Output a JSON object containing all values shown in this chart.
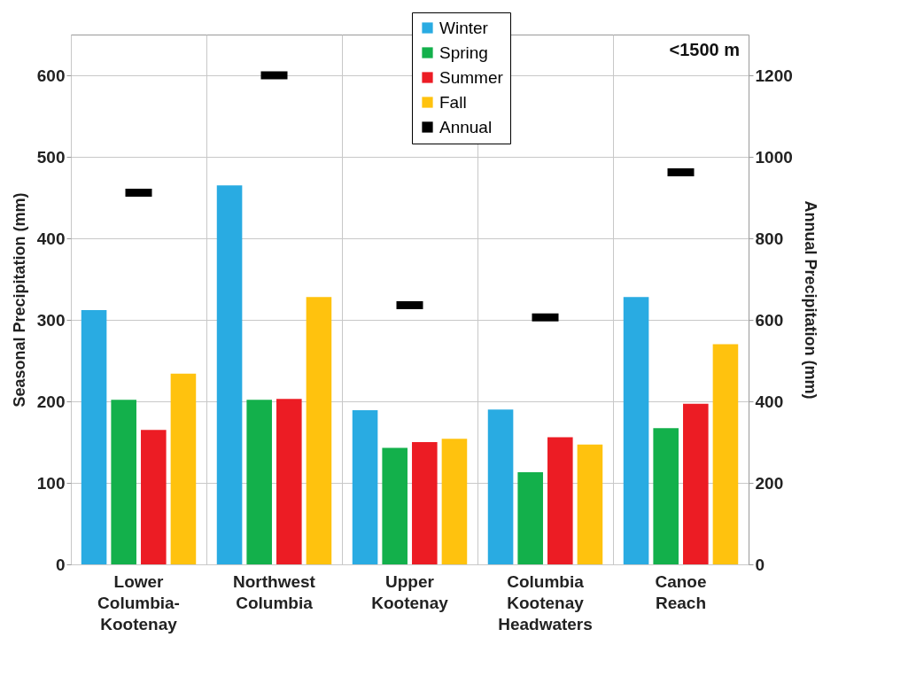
{
  "chart_data": {
    "type": "bar",
    "categories": [
      "Lower Columbia-Kootenay",
      "Northwest Columbia",
      "Upper Kootenay",
      "Columbia Kootenay Headwaters",
      "Canoe Reach"
    ],
    "series": [
      {
        "name": "Winter",
        "color": "#29abe2",
        "values": [
          312,
          465,
          189,
          190,
          328
        ]
      },
      {
        "name": "Spring",
        "color": "#13b04b",
        "values": [
          202,
          202,
          143,
          113,
          167
        ]
      },
      {
        "name": "Summer",
        "color": "#ec1c24",
        "values": [
          165,
          203,
          150,
          156,
          197
        ]
      },
      {
        "name": "Fall",
        "color": "#ffc20e",
        "values": [
          234,
          328,
          154,
          147,
          270
        ]
      },
      {
        "name": "Annual",
        "type": "scatter",
        "axis": "y2",
        "color": "#000000",
        "values": [
          912,
          1200,
          636,
          606,
          962
        ]
      }
    ],
    "ylabel": "Seasonal  Precipitation (mm)",
    "y2label": "Annual  Precipitation (mm)",
    "ylim": [
      0,
      650
    ],
    "yticks": [
      0,
      100,
      200,
      300,
      400,
      500,
      600
    ],
    "y2lim": [
      0,
      1300
    ],
    "y2ticks": [
      0,
      200,
      400,
      600,
      800,
      1000,
      1200
    ],
    "annotations": [
      "<1500 m"
    ],
    "grid": true,
    "legend": "top"
  }
}
